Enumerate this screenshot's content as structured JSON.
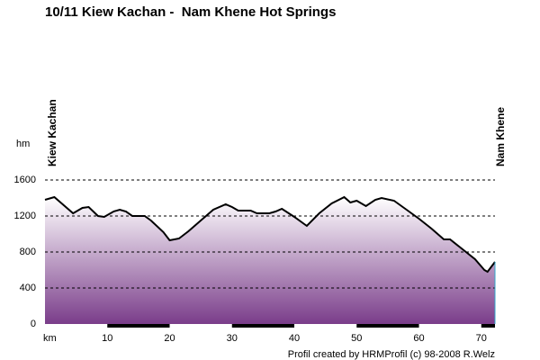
{
  "chart_data": {
    "type": "area",
    "title": "10/11 Kiew Kachan -  Nam Khene Hot Springs",
    "start_label": "Kiew Kachan",
    "end_label": "Nam Khene",
    "y_unit": "hm",
    "x_unit": "km",
    "footer": "Profil created by HRMProfil (c) 98-2008 R.Welz",
    "x": [
      0,
      1.5,
      3,
      4.5,
      6,
      7,
      8.5,
      9.5,
      11,
      12,
      13,
      14,
      16,
      17,
      19,
      20,
      21.5,
      23,
      25,
      27,
      29,
      30,
      31,
      33,
      34,
      36,
      37,
      38,
      40,
      42,
      44,
      46,
      48,
      49,
      50,
      51.5,
      53,
      54,
      56,
      58,
      60,
      62,
      64,
      65,
      67,
      69,
      70.5,
      71,
      72.2
    ],
    "values": [
      1380,
      1410,
      1320,
      1230,
      1290,
      1300,
      1200,
      1190,
      1250,
      1270,
      1250,
      1200,
      1200,
      1150,
      1020,
      930,
      950,
      1030,
      1150,
      1270,
      1330,
      1300,
      1260,
      1260,
      1230,
      1230,
      1250,
      1280,
      1190,
      1090,
      1230,
      1340,
      1410,
      1350,
      1370,
      1310,
      1380,
      1400,
      1370,
      1270,
      1170,
      1060,
      940,
      940,
      830,
      720,
      600,
      580,
      690
    ],
    "color": "#000000",
    "fill_top": "#ffffff",
    "fill_bottom": "#7a3d8a",
    "xlim": [
      0,
      72.2
    ],
    "xticks": [
      10,
      20,
      30,
      40,
      50,
      60,
      70
    ],
    "ylim": [
      0,
      1600
    ],
    "yticks": [
      0,
      400,
      800,
      1200,
      1600
    ],
    "grid": true
  }
}
